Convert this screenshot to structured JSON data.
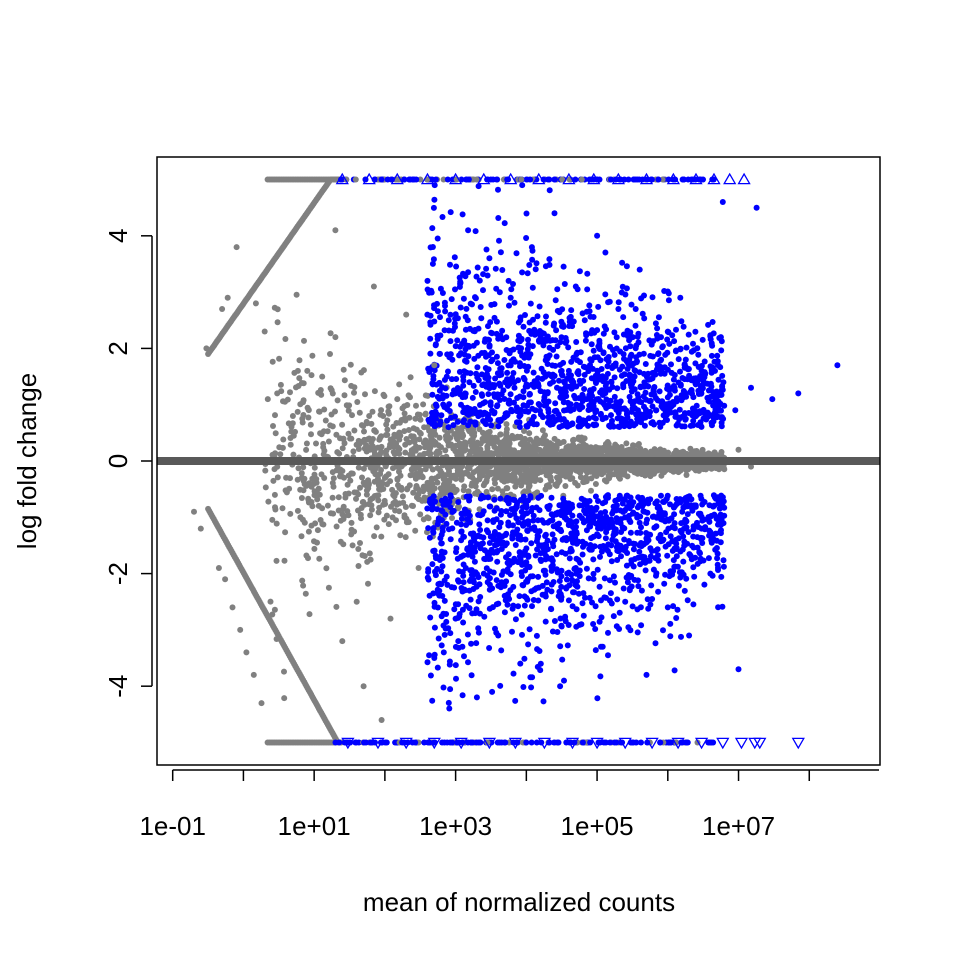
{
  "chart_data": {
    "type": "scatter",
    "xlabel": "mean of normalized counts",
    "ylabel": "log fold change",
    "x_scale": "log10",
    "xlim": [
      0.06,
      1000000000
    ],
    "ylim": [
      -5.4,
      5.4
    ],
    "x_ticks": [
      {
        "value": 0.1,
        "label": "1e-01"
      },
      {
        "value": 10,
        "label": "1e+01"
      },
      {
        "value": 1000,
        "label": "1e+03"
      },
      {
        "value": 100000,
        "label": "1e+05"
      },
      {
        "value": 10000000,
        "label": "1e+07"
      }
    ],
    "y_ticks": [
      {
        "value": -4,
        "label": "-4"
      },
      {
        "value": -2,
        "label": "-2"
      },
      {
        "value": 0,
        "label": "0"
      },
      {
        "value": 2,
        "label": "2"
      },
      {
        "value": 4,
        "label": "4"
      }
    ],
    "clip_value": 5,
    "reference_line": {
      "y": 0,
      "color": "#595959"
    },
    "colors": {
      "not_significant": "#808080",
      "significant": "#0000ff"
    },
    "grid": false,
    "series": [
      {
        "color": "#0000ff",
        "marker": "dot",
        "points": [
          [
            400,
            3.2
          ],
          [
            800,
            2.5
          ],
          [
            1500,
            4.1
          ],
          [
            3000,
            3.6
          ],
          [
            6000,
            2.9
          ],
          [
            12000,
            3.8
          ],
          [
            25000,
            4.4
          ],
          [
            50000,
            3.1
          ],
          [
            100000,
            4.0
          ],
          [
            200000,
            2.7
          ],
          [
            400000,
            3.4
          ],
          [
            800000,
            2.2
          ],
          [
            1500000,
            2.9
          ],
          [
            3000000,
            1.6
          ],
          [
            900,
            1.8
          ],
          [
            2000,
            2.1
          ],
          [
            5000,
            1.4
          ],
          [
            10000,
            1.9
          ],
          [
            20000,
            1.2
          ],
          [
            40000,
            1.6
          ],
          [
            80000,
            1.1
          ],
          [
            160000,
            1.4
          ],
          [
            320000,
            1.0
          ],
          [
            640000,
            1.3
          ],
          [
            1200000,
            1.0
          ],
          [
            2500000,
            0.8
          ],
          [
            5000000,
            1.2
          ],
          [
            9000000,
            0.9
          ],
          [
            15000000,
            1.3
          ],
          [
            30000000,
            1.1
          ],
          [
            70000000,
            1.2
          ],
          [
            250000000,
            1.7
          ],
          [
            18000000,
            4.5
          ],
          [
            6000000,
            4.6
          ],
          [
            500,
            -3.5
          ],
          [
            1000,
            -2.8
          ],
          [
            2000,
            -4.2
          ],
          [
            4000,
            -3.1
          ],
          [
            8000,
            -2.4
          ],
          [
            16000,
            -3.6
          ],
          [
            30000,
            -4.0
          ],
          [
            60000,
            -2.9
          ],
          [
            120000,
            -3.3
          ],
          [
            250000,
            -2.5
          ],
          [
            500000,
            -3.8
          ],
          [
            1000000,
            -2.6
          ],
          [
            2000000,
            -3.1
          ],
          [
            4000000,
            -2.0
          ],
          [
            1200,
            -1.7
          ],
          [
            2500,
            -2.0
          ],
          [
            5000,
            -1.5
          ],
          [
            10000,
            -1.8
          ],
          [
            25000,
            -1.4
          ],
          [
            50000,
            -1.9
          ],
          [
            100000,
            -1.3
          ],
          [
            200000,
            -1.6
          ],
          [
            400000,
            -1.1
          ],
          [
            800000,
            -1.4
          ],
          [
            1600000,
            -0.9
          ],
          [
            3000000,
            -1.2
          ],
          [
            6000000,
            -0.8
          ],
          [
            10000000,
            -3.7
          ]
        ]
      },
      {
        "color": "#808080",
        "marker": "dot",
        "points": [
          [
            0.3,
            2.0
          ],
          [
            0.5,
            2.7
          ],
          [
            0.8,
            3.8
          ],
          [
            0.6,
            2.9
          ],
          [
            1.5,
            2.8
          ],
          [
            2.0,
            2.3
          ],
          [
            0.2,
            -0.9
          ],
          [
            0.25,
            -1.2
          ],
          [
            0.45,
            -1.9
          ],
          [
            0.55,
            -2.1
          ],
          [
            0.7,
            -2.6
          ],
          [
            0.9,
            -3.0
          ],
          [
            1.1,
            -3.4
          ],
          [
            1.4,
            -3.8
          ],
          [
            1.8,
            -4.3
          ],
          [
            3,
            1.2
          ],
          [
            5,
            0.8
          ],
          [
            8,
            1.6
          ],
          [
            12,
            -0.6
          ],
          [
            20,
            2.2
          ],
          [
            35,
            -1.5
          ],
          [
            60,
            0.4
          ],
          [
            100,
            -0.3
          ],
          [
            150,
            1.1
          ],
          [
            250,
            -0.8
          ],
          [
            400,
            0.6
          ],
          [
            700,
            -0.4
          ],
          [
            1200,
            0.3
          ],
          [
            2500,
            -0.2
          ],
          [
            5000,
            0.2
          ],
          [
            10000,
            -0.1
          ],
          [
            20000,
            0.15
          ],
          [
            50000,
            -0.1
          ],
          [
            100000,
            0.1
          ],
          [
            300000,
            -0.1
          ],
          [
            800000,
            0.12
          ],
          [
            2000000,
            -0.08
          ],
          [
            5000000,
            0.1
          ],
          [
            10000000,
            0.2
          ],
          [
            15000000,
            -0.1
          ],
          [
            25,
            -3.2
          ],
          [
            40,
            -2.5
          ],
          [
            70,
            3.1
          ],
          [
            120,
            -2.8
          ],
          [
            200,
            2.6
          ],
          [
            300,
            -1.9
          ],
          [
            500,
            1.7
          ],
          [
            20,
            4.1
          ],
          [
            50,
            -4.0
          ],
          [
            90,
            -4.6
          ]
        ]
      }
    ],
    "clipped_high": {
      "y": 5,
      "gray_range": [
        2.2,
        20
      ],
      "blue_marker": "triangle-up",
      "blue_x": [
        25,
        60,
        150,
        400,
        1000,
        2500,
        6000,
        15000,
        40000,
        90000,
        200000,
        500000,
        1200000,
        2500000,
        4500000,
        7500000,
        12000000
      ]
    },
    "clipped_low": {
      "y": -5,
      "gray_range": [
        2.2,
        20
      ],
      "blue_marker": "triangle-down",
      "blue_x": [
        30,
        80,
        200,
        500,
        1200,
        3000,
        7000,
        18000,
        45000,
        100000,
        250000,
        600000,
        1400000,
        3000000,
        6000000,
        11000000,
        17000000,
        20000000,
        70000000
      ]
    }
  }
}
